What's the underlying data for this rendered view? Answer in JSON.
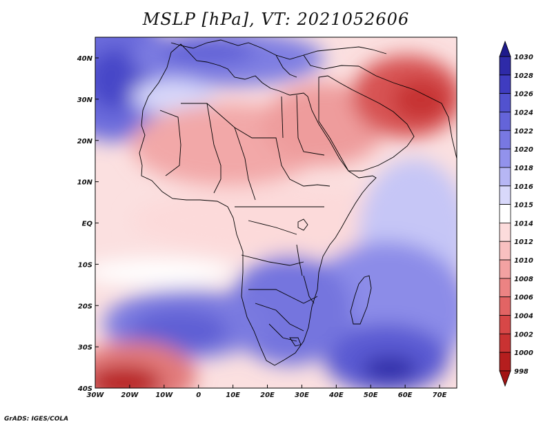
{
  "title": "MSLP [hPa], VT: 2021052606",
  "credit": "GrADS: IGES/COLA",
  "map": {
    "field": "Mean sea level pressure",
    "units": "hPa",
    "valid_time": "2021052606",
    "lon_range": [
      -30,
      75
    ],
    "lat_range": [
      -40,
      45
    ],
    "lon_ticks": [
      "30W",
      "20W",
      "10W",
      "0",
      "10E",
      "20E",
      "30E",
      "40E",
      "50E",
      "60E",
      "70E"
    ],
    "lat_ticks": [
      "40N",
      "30N",
      "20N",
      "10N",
      "EQ",
      "10S",
      "20S",
      "30S",
      "40S"
    ]
  },
  "colorbar": {
    "levels": [
      "1030",
      "1028",
      "1026",
      "1024",
      "1022",
      "1020",
      "1018",
      "1016",
      "1015",
      "1014",
      "1012",
      "1010",
      "1008",
      "1006",
      "1004",
      "1002",
      "1000",
      "998"
    ],
    "colors": [
      "#1e1a8c",
      "#2e2aa8",
      "#3f3cc0",
      "#5252cf",
      "#6464d9",
      "#7878e2",
      "#9292ec",
      "#b6b6f4",
      "#d8d8fa",
      "#ffffff",
      "#fcdcdc",
      "#f8c0c0",
      "#f3a2a2",
      "#ec8383",
      "#e26464",
      "#d74747",
      "#c93232",
      "#b51e1e",
      "#a31414"
    ]
  }
}
